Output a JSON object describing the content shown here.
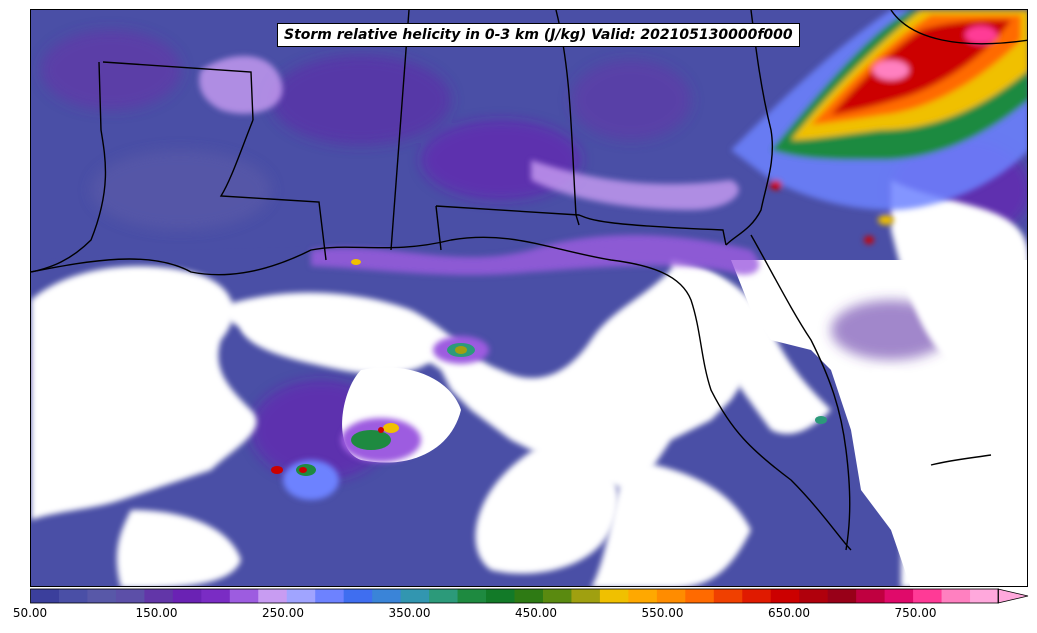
{
  "map": {
    "title": "Storm relative helicity in 0-3 km (J/kg) Valid: 202105130000f000",
    "region": "Southeast United States and Gulf of Mexico",
    "background_color": "#ffffff",
    "boundary_color": "#000000"
  },
  "colorbar": {
    "tick_labels": [
      "50.00",
      "150.00",
      "250.00",
      "350.00",
      "450.00",
      "550.00",
      "650.00",
      "750.00"
    ],
    "extend": "max",
    "colors": [
      "#3b3f9c",
      "#4a4fa6",
      "#5858a8",
      "#5c4fa8",
      "#6236a8",
      "#6a22b4",
      "#7a2cc4",
      "#9d5ce0",
      "#c89cf2",
      "#a0a4ff",
      "#6d82ff",
      "#3f6ef0",
      "#3a84d8",
      "#3296b0",
      "#2c9a7a",
      "#1e8a40",
      "#127a28",
      "#2e7a14",
      "#5a8a10",
      "#a0a010",
      "#f0c000",
      "#ffa800",
      "#ff8c00",
      "#ff6a00",
      "#f04000",
      "#e01a00",
      "#cc0000",
      "#b0000c",
      "#980018",
      "#c00040",
      "#e00a6a",
      "#ff3a96",
      "#ff80c0",
      "#ffa8dc"
    ]
  }
}
